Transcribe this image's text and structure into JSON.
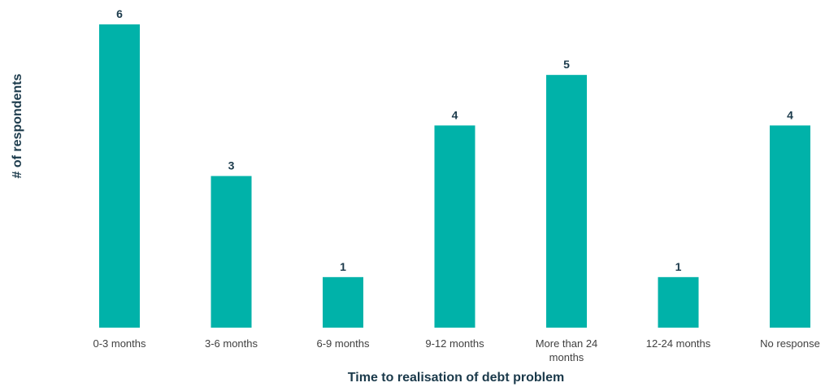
{
  "chart_data": {
    "type": "bar",
    "categories": [
      "0-3 months",
      "3-6 months",
      "6-9 months",
      "9-12 months",
      "More than 24 months",
      "12-24 months",
      "No response"
    ],
    "values": [
      6,
      3,
      1,
      4,
      5,
      1,
      4
    ],
    "title": "",
    "xlabel": "Time to realisation of debt problem",
    "ylabel": "# of respondents",
    "ylim": [
      0,
      6
    ],
    "grid": false,
    "legend": "none",
    "data_labels": true,
    "bar_color": "#00b2a9",
    "label_color": "#1b3a4b"
  }
}
